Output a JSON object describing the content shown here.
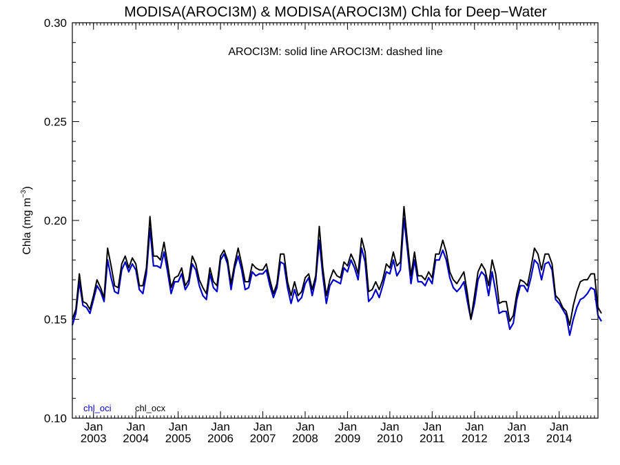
{
  "chart_data": {
    "type": "line",
    "title": "MODISA(AROCI3M) & MODISA(AROCI3M)  Chla for Deep−Water",
    "annotation": "AROCI3M: solid line   AROCI3M: dashed line",
    "ylabel_main": "Chla (mg m",
    "ylabel_sup": "−3",
    "ylabel_end": ")",
    "ylim": [
      0.1,
      0.3
    ],
    "yticks": [
      "0.10",
      "0.15",
      "0.20",
      "0.25",
      "0.30"
    ],
    "xlim": [
      2002.5,
      2014.9167
    ],
    "xticks": [
      {
        "top": "Jan",
        "bottom": "2003",
        "x": 2003
      },
      {
        "top": "Jan",
        "bottom": "2004",
        "x": 2004
      },
      {
        "top": "Jan",
        "bottom": "2005",
        "x": 2005
      },
      {
        "top": "Jan",
        "bottom": "2006",
        "x": 2006
      },
      {
        "top": "Jan",
        "bottom": "2007",
        "x": 2007
      },
      {
        "top": "Jan",
        "bottom": "2008",
        "x": 2008
      },
      {
        "top": "Jan",
        "bottom": "2009",
        "x": 2009
      },
      {
        "top": "Jan",
        "bottom": "2010",
        "x": 2010
      },
      {
        "top": "Jan",
        "bottom": "2011",
        "x": 2011
      },
      {
        "top": "Jan",
        "bottom": "2012",
        "x": 2012
      },
      {
        "top": "Jan",
        "bottom": "2013",
        "x": 2013
      },
      {
        "top": "Jan",
        "bottom": "2014",
        "x": 2014
      }
    ],
    "grid": false,
    "legend_position": "bottom-left",
    "series": [
      {
        "name": "chl_oci",
        "color": "#0000cc",
        "start": "2002-07",
        "values": [
          0.147,
          0.153,
          0.169,
          0.157,
          0.156,
          0.153,
          0.16,
          0.167,
          0.164,
          0.159,
          0.18,
          0.171,
          0.164,
          0.163,
          0.175,
          0.179,
          0.174,
          0.178,
          0.175,
          0.165,
          0.163,
          0.173,
          0.196,
          0.177,
          0.177,
          0.176,
          0.184,
          0.174,
          0.163,
          0.169,
          0.169,
          0.173,
          0.165,
          0.168,
          0.178,
          0.175,
          0.167,
          0.162,
          0.16,
          0.173,
          0.166,
          0.164,
          0.18,
          0.183,
          0.178,
          0.165,
          0.176,
          0.182,
          0.175,
          0.165,
          0.166,
          0.174,
          0.172,
          0.173,
          0.173,
          0.175,
          0.167,
          0.161,
          0.166,
          0.179,
          0.178,
          0.166,
          0.158,
          0.165,
          0.159,
          0.161,
          0.168,
          0.171,
          0.162,
          0.17,
          0.19,
          0.172,
          0.158,
          0.167,
          0.17,
          0.169,
          0.168,
          0.176,
          0.174,
          0.18,
          0.176,
          0.17,
          0.186,
          0.179,
          0.159,
          0.161,
          0.165,
          0.161,
          0.167,
          0.174,
          0.173,
          0.18,
          0.172,
          0.175,
          0.201,
          0.185,
          0.168,
          0.18,
          0.169,
          0.169,
          0.167,
          0.171,
          0.168,
          0.18,
          0.18,
          0.185,
          0.18,
          0.171,
          0.166,
          0.164,
          0.166,
          0.169,
          0.159,
          0.15,
          0.158,
          0.17,
          0.174,
          0.172,
          0.162,
          0.174,
          0.164,
          0.153,
          0.154,
          0.154,
          0.145,
          0.148,
          0.16,
          0.167,
          0.167,
          0.164,
          0.171,
          0.18,
          0.178,
          0.17,
          0.178,
          0.179,
          0.175,
          0.16,
          0.158,
          0.155,
          0.152,
          0.142,
          0.15,
          0.156,
          0.16,
          0.161,
          0.163,
          0.166,
          0.165,
          0.152,
          0.149
        ]
      },
      {
        "name": "chl_ocx",
        "color": "#000000",
        "start": "2002-07",
        "values": [
          0.15,
          0.155,
          0.173,
          0.159,
          0.158,
          0.155,
          0.162,
          0.17,
          0.166,
          0.161,
          0.186,
          0.177,
          0.167,
          0.166,
          0.178,
          0.182,
          0.176,
          0.181,
          0.178,
          0.167,
          0.167,
          0.176,
          0.202,
          0.182,
          0.182,
          0.18,
          0.189,
          0.178,
          0.166,
          0.171,
          0.172,
          0.176,
          0.167,
          0.17,
          0.182,
          0.178,
          0.17,
          0.166,
          0.163,
          0.176,
          0.169,
          0.167,
          0.182,
          0.185,
          0.18,
          0.168,
          0.178,
          0.186,
          0.178,
          0.169,
          0.169,
          0.178,
          0.176,
          0.175,
          0.175,
          0.178,
          0.17,
          0.163,
          0.168,
          0.183,
          0.183,
          0.169,
          0.162,
          0.169,
          0.162,
          0.164,
          0.171,
          0.173,
          0.165,
          0.172,
          0.197,
          0.176,
          0.162,
          0.17,
          0.175,
          0.172,
          0.171,
          0.179,
          0.177,
          0.183,
          0.179,
          0.173,
          0.191,
          0.184,
          0.164,
          0.165,
          0.169,
          0.165,
          0.17,
          0.178,
          0.176,
          0.184,
          0.177,
          0.179,
          0.207,
          0.189,
          0.172,
          0.184,
          0.172,
          0.172,
          0.17,
          0.174,
          0.171,
          0.183,
          0.183,
          0.19,
          0.184,
          0.174,
          0.17,
          0.168,
          0.171,
          0.174,
          0.163,
          0.15,
          0.162,
          0.174,
          0.178,
          0.175,
          0.167,
          0.18,
          0.173,
          0.158,
          0.159,
          0.159,
          0.149,
          0.152,
          0.163,
          0.17,
          0.169,
          0.167,
          0.176,
          0.186,
          0.183,
          0.175,
          0.183,
          0.183,
          0.178,
          0.162,
          0.16,
          0.156,
          0.154,
          0.147,
          0.157,
          0.164,
          0.169,
          0.17,
          0.17,
          0.173,
          0.173,
          0.156,
          0.153
        ]
      }
    ]
  }
}
